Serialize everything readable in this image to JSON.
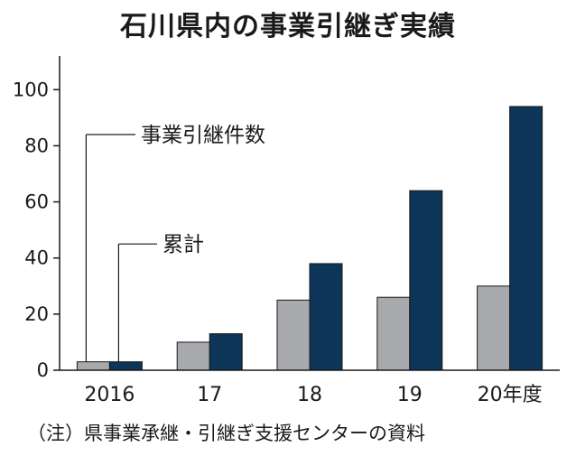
{
  "chart_data": {
    "type": "bar",
    "title": "石川県内の事業引継ぎ実績",
    "categories": [
      "2016",
      "17",
      "18",
      "19",
      "20年度"
    ],
    "series": [
      {
        "name": "事業引継件数",
        "values": [
          3,
          10,
          25,
          26,
          30
        ],
        "color": "#a7a9ad"
      },
      {
        "name": "累計",
        "values": [
          3,
          13,
          38,
          64,
          94
        ],
        "color": "#0c3557"
      }
    ],
    "yticks": [
      0,
      20,
      40,
      60,
      80,
      100
    ],
    "ylim": [
      0,
      112
    ],
    "grid": false,
    "legend": "callout labels near first category",
    "source": "（注）県事業承継・引継ぎ支援センターの資料"
  }
}
